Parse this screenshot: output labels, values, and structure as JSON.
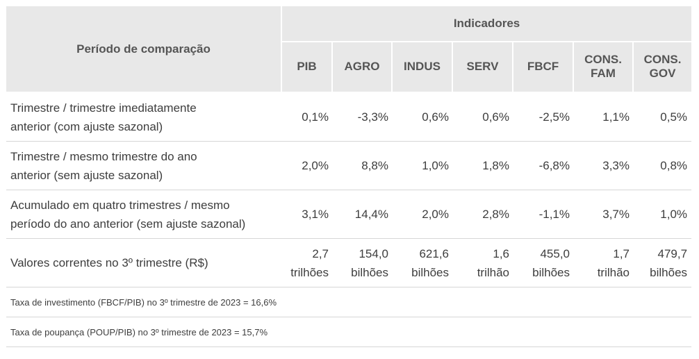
{
  "header": {
    "period_label": "Período de comparação",
    "group_label": "Indicadores",
    "indicators": [
      [
        "PIB"
      ],
      [
        "AGRO"
      ],
      [
        "INDUS"
      ],
      [
        "SERV"
      ],
      [
        "FBCF"
      ],
      [
        "CONS.",
        "FAM"
      ],
      [
        "CONS.",
        "GOV"
      ]
    ]
  },
  "rows": [
    {
      "label": [
        "Trimestre / trimestre imediatamente",
        "anterior (com ajuste sazonal)"
      ],
      "values": [
        [
          "0,1%"
        ],
        [
          "-3,3%"
        ],
        [
          "0,6%"
        ],
        [
          "0,6%"
        ],
        [
          "-2,5%"
        ],
        [
          "1,1%"
        ],
        [
          "0,5%"
        ]
      ]
    },
    {
      "label": [
        "Trimestre / mesmo trimestre do ano",
        "anterior (sem ajuste sazonal)"
      ],
      "values": [
        [
          "2,0%"
        ],
        [
          "8,8%"
        ],
        [
          "1,0%"
        ],
        [
          "1,8%"
        ],
        [
          "-6,8%"
        ],
        [
          "3,3%"
        ],
        [
          "0,8%"
        ]
      ]
    },
    {
      "label": [
        "Acumulado em quatro trimestres / mesmo",
        "período do ano anterior (sem ajuste sazonal)"
      ],
      "values": [
        [
          "3,1%"
        ],
        [
          "14,4%"
        ],
        [
          "2,0%"
        ],
        [
          "2,8%"
        ],
        [
          "-1,1%"
        ],
        [
          "3,7%"
        ],
        [
          "1,0%"
        ]
      ]
    },
    {
      "label": [
        "Valores correntes no 3º trimestre (R$)"
      ],
      "values": [
        [
          "2,7",
          "trilhões"
        ],
        [
          "154,0",
          "bilhões"
        ],
        [
          "621,6",
          "bilhões"
        ],
        [
          "1,6",
          "trilhão"
        ],
        [
          "455,0",
          "bilhões"
        ],
        [
          "1,7",
          "trilhão"
        ],
        [
          "479,7",
          "bilhões"
        ]
      ]
    }
  ],
  "notes": [
    "Taxa de investimento (FBCF/PIB) no 3º trimestre de 2023 = 16,6%",
    "Taxa de poupança (POUP/PIB) no  3º trimestre de 2023 = 15,7%"
  ]
}
